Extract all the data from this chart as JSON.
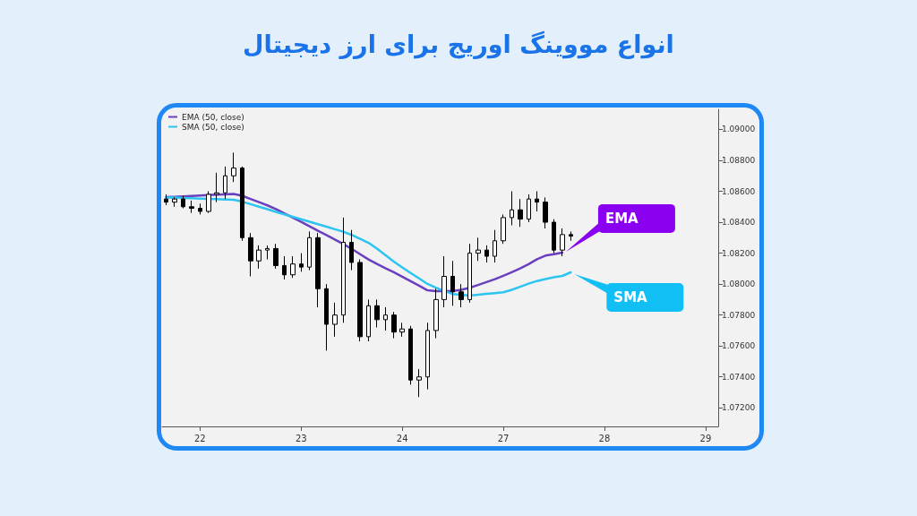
{
  "chart_data": {
    "type": "candlestick",
    "title": "انواع مووینگ اوریج برای ارز دیجیتال",
    "categories": [
      null,
      null,
      null,
      null,
      "22",
      null,
      null,
      null,
      null,
      null,
      null,
      null,
      null,
      null,
      null,
      null,
      "23",
      null,
      null,
      null,
      null,
      null,
      null,
      null,
      null,
      null,
      null,
      null,
      "24",
      null,
      null,
      null,
      null,
      null,
      null,
      null,
      null,
      null,
      null,
      null,
      "27",
      null,
      null,
      null,
      null,
      null,
      null,
      null,
      null,
      null,
      null,
      null,
      "28",
      null,
      null,
      null,
      null,
      null,
      null,
      null,
      null,
      null,
      null,
      null,
      "29",
      null
    ],
    "ohlc": [
      [
        1.0855,
        1.0858,
        1.0851,
        1.0853
      ],
      [
        1.0853,
        1.0856,
        1.085,
        1.0855
      ],
      [
        1.0855,
        1.0857,
        1.0849,
        1.085
      ],
      [
        1.085,
        1.0854,
        1.0846,
        1.0849
      ],
      [
        1.0849,
        1.0852,
        1.0845,
        1.0847
      ],
      [
        1.0847,
        1.086,
        1.0846,
        1.0858
      ],
      [
        1.0858,
        1.0872,
        1.0853,
        1.0859
      ],
      [
        1.0859,
        1.0876,
        1.0855,
        1.087
      ],
      [
        1.087,
        1.0885,
        1.0866,
        1.0875
      ],
      [
        1.0875,
        1.0876,
        1.0828,
        1.083
      ],
      [
        1.083,
        1.0833,
        1.0805,
        1.0815
      ],
      [
        1.0815,
        1.0825,
        1.081,
        1.0822
      ],
      [
        1.0822,
        1.0825,
        1.0816,
        1.0823
      ],
      [
        1.0823,
        1.0826,
        1.081,
        1.0812
      ],
      [
        1.0812,
        1.0818,
        1.0803,
        1.0806
      ],
      [
        1.0806,
        1.0818,
        1.0804,
        1.0813
      ],
      [
        1.0813,
        1.082,
        1.0808,
        1.0811
      ],
      [
        1.0811,
        1.0834,
        1.0809,
        1.083
      ],
      [
        1.083,
        1.0833,
        1.0785,
        1.0797
      ],
      [
        1.0797,
        1.08,
        1.0757,
        1.0774
      ],
      [
        1.0774,
        1.0788,
        1.0766,
        1.078
      ],
      [
        1.078,
        1.0843,
        1.0775,
        1.0827
      ],
      [
        1.0827,
        1.0835,
        1.0809,
        1.0814
      ],
      [
        1.0814,
        1.0816,
        1.0763,
        1.0766
      ],
      [
        1.0766,
        1.079,
        1.0763,
        1.0786
      ],
      [
        1.0786,
        1.079,
        1.0772,
        1.0777
      ],
      [
        1.0777,
        1.0785,
        1.077,
        1.078
      ],
      [
        1.078,
        1.0782,
        1.0765,
        1.0769
      ],
      [
        1.0769,
        1.0775,
        1.0766,
        1.0771
      ],
      [
        1.0771,
        1.0773,
        1.0735,
        1.0738
      ],
      [
        1.0738,
        1.0745,
        1.0727,
        1.074
      ],
      [
        1.074,
        1.0775,
        1.0732,
        1.077
      ],
      [
        1.077,
        1.0797,
        1.0765,
        1.079
      ],
      [
        1.079,
        1.0818,
        1.0785,
        1.0805
      ],
      [
        1.0805,
        1.0815,
        1.0786,
        1.0795
      ],
      [
        1.0795,
        1.08,
        1.0785,
        1.079
      ],
      [
        1.079,
        1.0826,
        1.0788,
        1.082
      ],
      [
        1.082,
        1.083,
        1.0815,
        1.0822
      ],
      [
        1.0822,
        1.0825,
        1.0814,
        1.0818
      ],
      [
        1.0818,
        1.0835,
        1.0814,
        1.0828
      ],
      [
        1.0828,
        1.0845,
        1.0826,
        1.0843
      ],
      [
        1.0843,
        1.086,
        1.0838,
        1.0848
      ],
      [
        1.0848,
        1.0855,
        1.0837,
        1.0842
      ],
      [
        1.0842,
        1.0858,
        1.084,
        1.0855
      ],
      [
        1.0855,
        1.086,
        1.0847,
        1.0853
      ],
      [
        1.0853,
        1.0856,
        1.0836,
        1.084
      ],
      [
        1.084,
        1.0842,
        1.082,
        1.0822
      ],
      [
        1.0822,
        1.0836,
        1.0818,
        1.0832
      ],
      [
        1.0832,
        1.0834,
        1.0828,
        1.0831
      ],
      null,
      null,
      null,
      null,
      null,
      null,
      null,
      null,
      null,
      null,
      null,
      null,
      null,
      null,
      null,
      null,
      null
    ],
    "series": [
      {
        "name": "EMA (50, close)",
        "type": "line",
        "color": "#6a3fc0",
        "values": [
          1.08562,
          1.08564,
          1.08567,
          1.0857,
          1.08572,
          1.08575,
          1.08578,
          1.0858,
          1.08583,
          1.08571,
          1.0855,
          1.0853,
          1.08509,
          1.08485,
          1.08457,
          1.0843,
          1.08402,
          1.08374,
          1.08345,
          1.08317,
          1.08288,
          1.08259,
          1.08228,
          1.08193,
          1.08159,
          1.0813,
          1.08103,
          1.08077,
          1.08048,
          1.08019,
          1.0799,
          1.0796,
          1.07955,
          1.07955,
          1.07956,
          1.07963,
          1.07976,
          1.07994,
          1.08013,
          1.08032,
          1.08054,
          1.08077,
          1.08101,
          1.08129,
          1.08161,
          1.08184,
          1.08193,
          1.08204,
          null,
          null,
          null,
          null,
          null,
          null,
          null,
          null,
          null,
          null,
          null,
          null,
          null,
          null,
          null,
          null,
          null,
          null
        ]
      },
      {
        "name": "SMA (50, close)",
        "type": "line",
        "color": "#2cc4f0",
        "values": [
          1.0856,
          1.08559,
          1.08557,
          1.08555,
          1.08553,
          1.08551,
          1.08549,
          1.08547,
          1.08545,
          1.08533,
          1.08517,
          1.085,
          1.08484,
          1.08467,
          1.08451,
          1.08435,
          1.08419,
          1.08403,
          1.08387,
          1.08371,
          1.08355,
          1.08339,
          1.08318,
          1.08292,
          1.08267,
          1.08229,
          1.08188,
          1.08146,
          1.08108,
          1.08072,
          1.08037,
          1.08001,
          1.07977,
          1.07955,
          1.07936,
          1.07931,
          1.07926,
          1.07931,
          1.07937,
          1.07942,
          1.07947,
          1.07963,
          1.07983,
          1.08003,
          1.0802,
          1.08033,
          1.08044,
          1.08053,
          1.08076,
          null,
          null,
          null,
          null,
          null,
          null,
          null,
          null,
          null,
          null,
          null,
          null,
          null,
          null,
          null,
          null,
          null
        ]
      }
    ],
    "annotations": [
      "EMA",
      "SMA"
    ],
    "ylim": [
      1.0708,
      1.0913
    ],
    "yticks": [
      {
        "value": 1.072,
        "label": "1.07200"
      },
      {
        "value": 1.074,
        "label": "1.07400"
      },
      {
        "value": 1.076,
        "label": "1.07600"
      },
      {
        "value": 1.078,
        "label": "1.07800"
      },
      {
        "value": 1.08,
        "label": "1.08000"
      },
      {
        "value": 1.082,
        "label": "1.08200"
      },
      {
        "value": 1.084,
        "label": "1.08400"
      },
      {
        "value": 1.086,
        "label": "1.08600"
      },
      {
        "value": 1.088,
        "label": "1.08800"
      },
      {
        "value": 1.09,
        "label": "1.09000"
      }
    ],
    "grid": false,
    "legend": "top left",
    "line_style": "solid",
    "marker": "none"
  }
}
